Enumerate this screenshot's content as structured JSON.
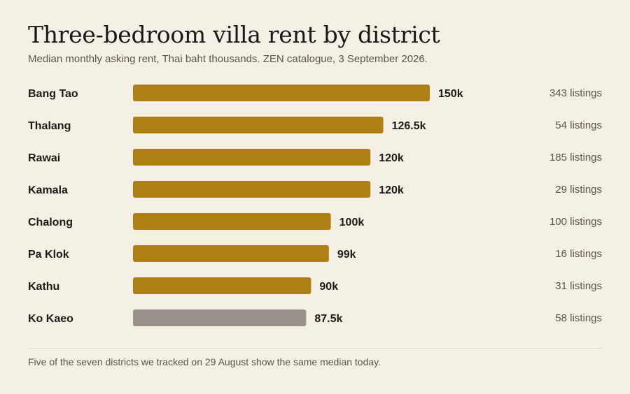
{
  "chart_data": {
    "type": "bar",
    "orientation": "horizontal",
    "title": "Three-bedroom villa rent by district",
    "subtitle": "Median monthly asking rent, Thai baht thousands. ZEN catalogue, 3 September 2026.",
    "categories": [
      "Bang Tao",
      "Thalang",
      "Rawai",
      "Kamala",
      "Chalong",
      "Pa Klok",
      "Kathu",
      "Ko Kaeo"
    ],
    "values": [
      150,
      126.5,
      120,
      120,
      100,
      99,
      90,
      87.5
    ],
    "value_labels": [
      "150k",
      "126.5k",
      "120k",
      "120k",
      "100k",
      "99k",
      "90k",
      "87.5k"
    ],
    "listings_labels": [
      "343 listings",
      "54 listings",
      "185 listings",
      "29 listings",
      "100 listings",
      "16 listings",
      "31 listings",
      "58 listings"
    ],
    "bar_colors": [
      "#b08018",
      "#b08018",
      "#b08018",
      "#b08018",
      "#b08018",
      "#b08018",
      "#b08018",
      "#99928a"
    ],
    "grid": false,
    "legend": "none",
    "footnote": "Five of the seven districts we tracked on 29 August show the same median today."
  }
}
